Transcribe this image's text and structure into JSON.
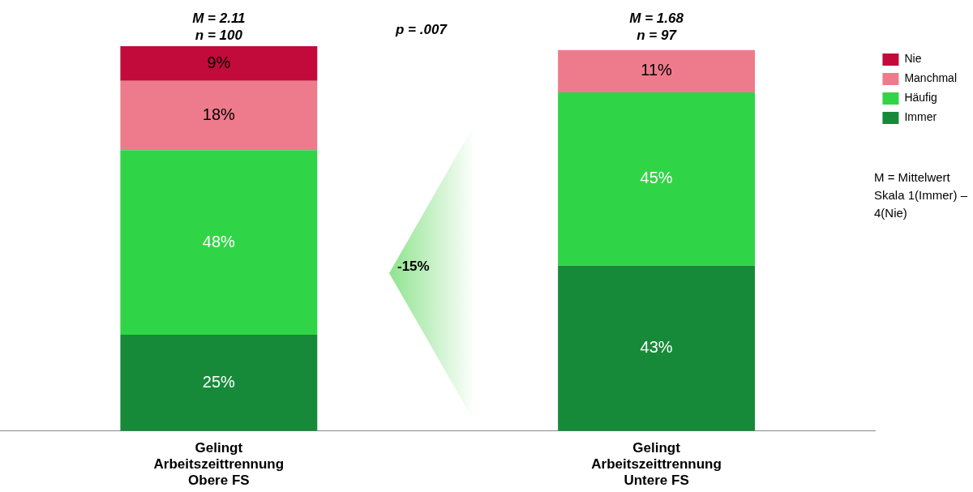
{
  "chart_data": {
    "type": "bar",
    "stacked": true,
    "categories": [
      "Gelingt\nArbeitszeittrennung\nObere FS",
      "Gelingt\nArbeitszeittrennung\nUntere FS"
    ],
    "series": [
      {
        "name": "Immer",
        "color": "#178a3a",
        "values": [
          25,
          43
        ],
        "value_labels": [
          "25%",
          "43%"
        ]
      },
      {
        "name": "Häufig",
        "color": "#2fd546",
        "values": [
          48,
          45
        ],
        "value_labels": [
          "48%",
          "45%"
        ]
      },
      {
        "name": "Manchmal",
        "color": "#ee7b8c",
        "values": [
          18,
          11
        ],
        "value_labels": [
          "18%",
          "11%"
        ]
      },
      {
        "name": "Nie",
        "color": "#c20b3b",
        "values": [
          9,
          null
        ],
        "value_labels": [
          "9%",
          null
        ]
      }
    ],
    "tick_labels": "x",
    "legend": "top right",
    "annotations": [
      {
        "text": "M = 2.11\nn = 100",
        "x": "Gelingt\nArbeitszeittrennung\nObere FS",
        "y": 100
      },
      {
        "text": "M = 1.68\nn = 97",
        "x": "Gelingt\nArbeitszeittrennung\nUntere FS",
        "y": 100
      },
      "p = .007",
      "-15%",
      "M = Mittelwert\nSkala 1(Immer) –\n4(Nie)"
    ]
  }
}
